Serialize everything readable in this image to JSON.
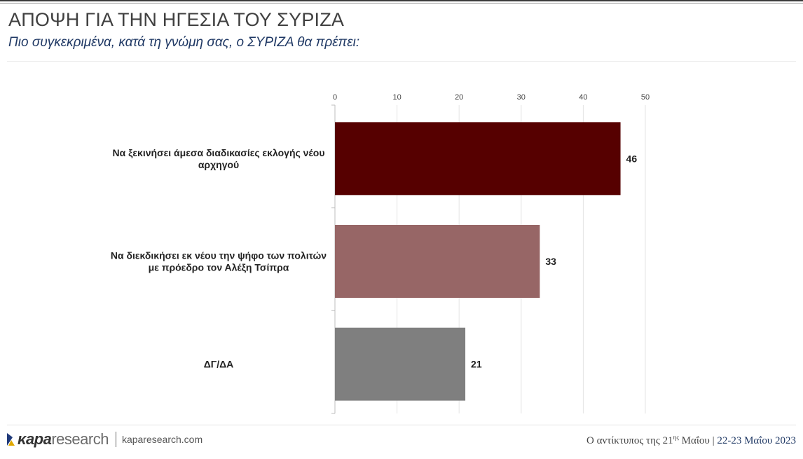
{
  "header": {
    "title": "ΑΠΟΨΗ ΓΙΑ ΤΗΝ ΗΓΕΣΙΑ ΤΟΥ ΣΥΡΙΖΑ",
    "subtitle": "Πιο συγκεκριμένα, κατά τη γνώμη σας, ο ΣΥΡΙΖΑ θα πρέπει:"
  },
  "chart_data": {
    "type": "bar",
    "orientation": "horizontal",
    "categories": [
      "Να ξεκινήσει άμεσα διαδικασίες εκλογής νέου αρχηγού",
      "Να διεκδικήσει εκ νέου την ψήφο των πολιτών με πρόεδρο τον Αλέξη Τσίπρα",
      "ΔΓ/ΔΑ"
    ],
    "category_lines": [
      [
        "Να ξεκινήσει άμεσα διαδικασίες εκλογής νέου",
        "αρχηγού"
      ],
      [
        "Να διεκδικήσει εκ νέου την ψήφο των πολιτών",
        "με πρόεδρο τον Αλέξη Τσίπρα"
      ],
      [
        "ΔΓ/ΔΑ"
      ]
    ],
    "values": [
      46,
      33,
      21
    ],
    "data_labels": [
      "46",
      "33",
      "21"
    ],
    "colors": [
      "#560000",
      "#976666",
      "#7f7f7f"
    ],
    "xlim": [
      0,
      50
    ],
    "ticks": [
      0,
      10,
      20,
      30,
      40,
      50
    ],
    "tick_labels": [
      "0",
      "10",
      "20",
      "30",
      "40",
      "50"
    ],
    "axis_position": "top",
    "grid": true
  },
  "footer": {
    "logo_bold": "κapa",
    "logo_light": "research",
    "site": "kaparesearch.com",
    "survey_prefix": "Ο αντίκτυπος της 21",
    "survey_sup": "ης",
    "survey_suffix": " Μαΐου",
    "separator": " | ",
    "dates": "22-23 Μαΐου 2023",
    "colors": {
      "logo_blue": "#1f3a7a",
      "logo_gold": "#e0a800"
    }
  }
}
